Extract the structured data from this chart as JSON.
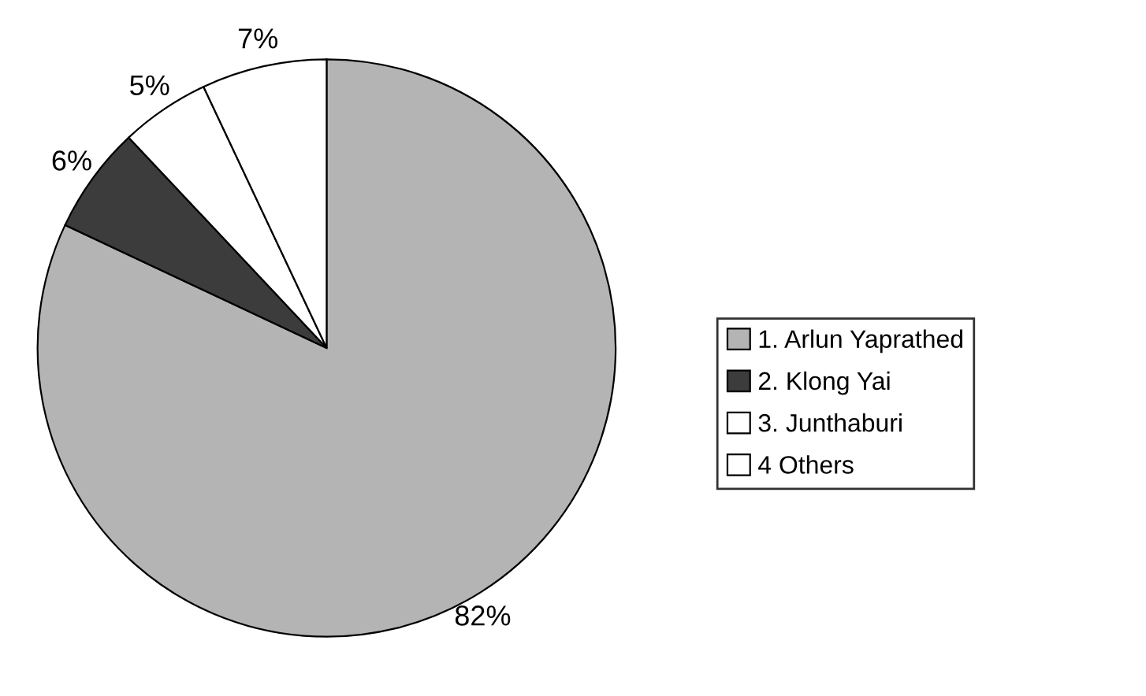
{
  "chart_data": {
    "type": "pie",
    "categories": [
      "1. Arlun Yaprathed",
      "2. Klong Yai",
      "3. Junthaburi",
      "4 Others"
    ],
    "values": [
      82,
      6,
      5,
      7
    ],
    "value_labels": [
      "82%",
      "6%",
      "5%",
      "7%"
    ],
    "colors": [
      "#b4b4b4",
      "#3c3c3c",
      "#ffffff",
      "#ffffff"
    ],
    "legend": "right"
  }
}
